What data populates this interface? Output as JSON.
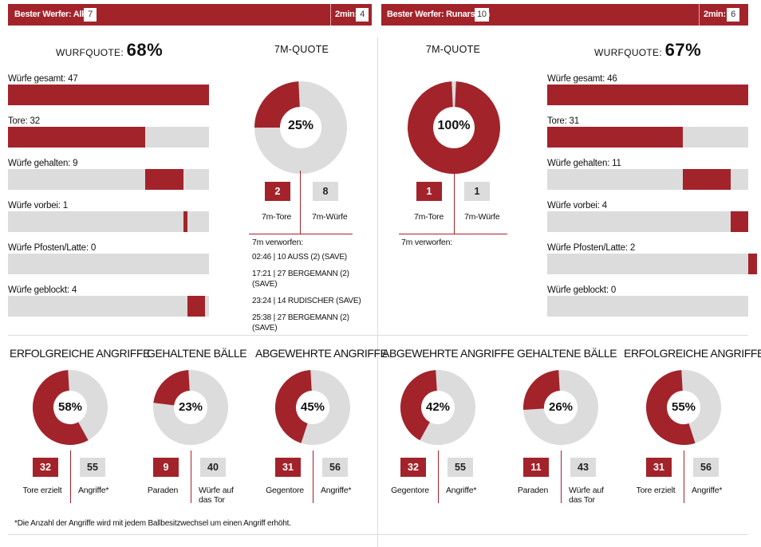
{
  "left": {
    "best_label": "Bester Werfer: Alkic",
    "best_value": "7",
    "twomin_label": "2min:",
    "twomin_value": "4",
    "quote_label": "WURFQUOTE:",
    "quote_value": "68%",
    "bars": [
      {
        "label": "Würfe gesamt: 47",
        "value": 47
      },
      {
        "label": "Tore: 32",
        "value": 32
      },
      {
        "label": "Würfe gehalten: 9",
        "value": 9
      },
      {
        "label": "Würfe vorbei: 1",
        "value": 1
      },
      {
        "label": "Würfe Pfosten/Latte: 0",
        "value": 0
      },
      {
        "label": "Würfe geblockt: 4",
        "value": 4
      }
    ],
    "seven_title": "7M-QUOTE",
    "seven_pct": "25%",
    "seven_fraction": 0.25,
    "seven_tore": "2",
    "seven_wuerfe": "8",
    "seven_tore_label": "7m-Tore",
    "seven_wuerfe_label": "7m-Würfe",
    "verworfen_label": "7m verworfen:",
    "verworfen": [
      "02:46 | 10 AUSS (2) (SAVE)",
      "17:21 | 27 BERGEMANN (2) (SAVE)",
      "23:24 | 14 RUDISCHER (SAVE)",
      "25:38 | 27 BERGEMANN (2) (SAVE)"
    ],
    "sections": [
      {
        "title": "ERFOLGREICHE ANGRIFFE",
        "pct": "58%",
        "fraction": 0.58,
        "a": "32",
        "b": "55",
        "a_label": "Tore erzielt",
        "b_label": "Angriffe*"
      },
      {
        "title": "GEHALTENE BÄLLE",
        "pct": "23%",
        "fraction": 0.23,
        "a": "9",
        "b": "40",
        "a_label": "Paraden",
        "b_label": "Würfe auf das Tor"
      },
      {
        "title": "ABGEWEHRTE ANGRIFFE",
        "pct": "45%",
        "fraction": 0.45,
        "a": "31",
        "b": "56",
        "a_label": "Gegentore",
        "b_label": "Angriffe*"
      }
    ]
  },
  "right": {
    "best_label": "Bester Werfer: Runarsson",
    "best_value": "10",
    "twomin_label": "2min:",
    "twomin_value": "6",
    "quote_label": "WURFQUOTE:",
    "quote_value": "67%",
    "bars": [
      {
        "label": "Würfe gesamt: 46",
        "value": 46
      },
      {
        "label": "Tore: 31",
        "value": 31
      },
      {
        "label": "Würfe gehalten: 11",
        "value": 11
      },
      {
        "label": "Würfe vorbei: 4",
        "value": 4
      },
      {
        "label": "Würfe Pfosten/Latte: 2",
        "value": 2
      },
      {
        "label": "Würfe geblockt: 0",
        "value": 0
      }
    ],
    "seven_title": "7M-QUOTE",
    "seven_pct": "100%",
    "seven_fraction": 1.0,
    "seven_tore": "1",
    "seven_wuerfe": "1",
    "seven_tore_label": "7m-Tore",
    "seven_wuerfe_label": "7m-Würfe",
    "verworfen_label": "7m verworfen:",
    "sections": [
      {
        "title": "ABGEWEHRTE ANGRIFFE",
        "pct": "42%",
        "fraction": 0.42,
        "a": "32",
        "b": "55",
        "a_label": "Gegentore",
        "b_label": "Angriffe*"
      },
      {
        "title": "GEHALTENE BÄLLE",
        "pct": "26%",
        "fraction": 0.26,
        "a": "11",
        "b": "43",
        "a_label": "Paraden",
        "b_label": "Würfe auf das Tor"
      },
      {
        "title": "ERFOLGREICHE ANGRIFFE",
        "pct": "55%",
        "fraction": 0.55,
        "a": "31",
        "b": "56",
        "a_label": "Tore erzielt",
        "b_label": "Angriffe*"
      }
    ]
  },
  "footnote": "*Die Anzahl der Angriffe wird mit jedem Ballbesitzwechsel um einen Angriff erhöht.",
  "colors": {
    "accent": "#a3232b",
    "track": "#dcdcdc"
  }
}
